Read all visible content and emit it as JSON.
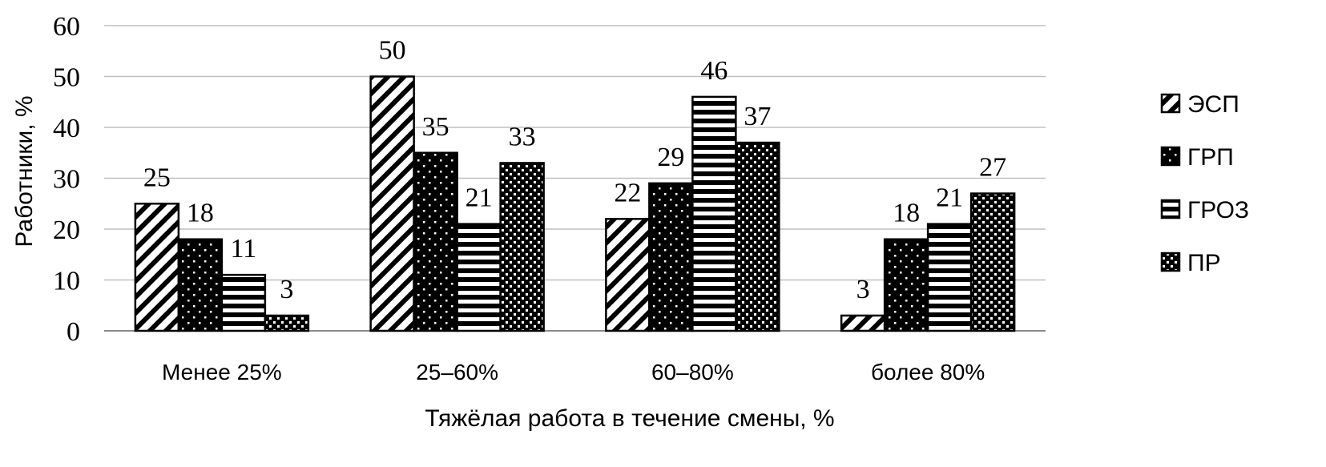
{
  "chart_data": {
    "type": "bar",
    "categories": [
      "Менее 25%",
      "25–60%",
      "60–80%",
      "более 80%"
    ],
    "series": [
      {
        "name": "ЭСП",
        "values": [
          25,
          50,
          22,
          3
        ],
        "pattern": "diagonal"
      },
      {
        "name": "ГРП",
        "values": [
          18,
          35,
          29,
          18
        ],
        "pattern": "dots"
      },
      {
        "name": "ГРОЗ",
        "values": [
          11,
          21,
          46,
          21
        ],
        "pattern": "horizontal"
      },
      {
        "name": "ПР",
        "values": [
          3,
          33,
          37,
          27
        ],
        "pattern": "checker"
      }
    ],
    "data_labels": [
      [
        "25",
        "50",
        "22",
        "3"
      ],
      [
        "18",
        "35",
        "29",
        "18"
      ],
      [
        "11",
        "21",
        "46",
        "21"
      ],
      [
        "3",
        "33",
        "37",
        "27"
      ]
    ],
    "xlabel": "Тяжёлая работа в течение смены, %",
    "ylabel": "Работники, %",
    "ylim": [
      0,
      60
    ],
    "yticks": [
      "0",
      "10",
      "20",
      "30",
      "40",
      "50",
      "60"
    ],
    "grid": true,
    "legend_position": "right",
    "colors": {
      "bar_fill": "#000000",
      "bar_pattern": "#ffffff",
      "grid": "#bfbfbf",
      "axis": "#8c8c8c"
    }
  }
}
